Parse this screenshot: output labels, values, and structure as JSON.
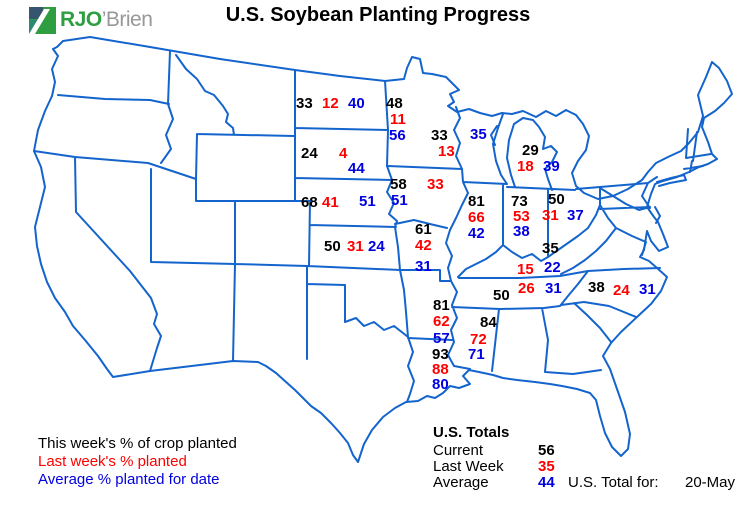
{
  "logo": {
    "text_primary": "RJO",
    "text_secondary": "’Brien"
  },
  "title": "U.S. Soybean Planting Progress",
  "legend": {
    "current_label": "This week's % of crop planted",
    "last_week_label": "Last week's % planted",
    "average_label": "Average % planted for date"
  },
  "totals": {
    "heading": "U.S. Totals",
    "rows": [
      {
        "label": "Current",
        "value": "56",
        "series": "current"
      },
      {
        "label": "Last Week",
        "value": "35",
        "series": "last_week"
      },
      {
        "label": "Average",
        "value": "44",
        "series": "average"
      }
    ],
    "total_for_label": "U.S. Total for:",
    "date": "20-May"
  },
  "colors": {
    "current": "#000000",
    "last_week": "#ff0000",
    "average": "#0000e0",
    "map_line": "#1464cd",
    "logo_green": "#2f9e41",
    "logo_gray": "#98989a"
  },
  "map_values": [
    {
      "state": "North Dakota",
      "entries": [
        [
          "current",
          "33",
          296,
          96
        ],
        [
          "last_week",
          "12",
          322,
          96
        ],
        [
          "average",
          "40",
          348,
          96
        ]
      ]
    },
    {
      "state": "Minnesota",
      "entries": [
        [
          "current",
          "48",
          386,
          96
        ],
        [
          "last_week",
          "11",
          390,
          112
        ],
        [
          "average",
          "56",
          389,
          128
        ]
      ]
    },
    {
      "state": "Wisconsin",
      "entries": [
        [
          "current",
          "33",
          431,
          128
        ],
        [
          "average",
          "35",
          470,
          127
        ],
        [
          "last_week",
          "13",
          438,
          144
        ]
      ]
    },
    {
      "state": "South Dakota",
      "entries": [
        [
          "current",
          "24",
          301,
          146
        ],
        [
          "last_week",
          "4",
          339,
          146
        ],
        [
          "average",
          "44",
          348,
          161
        ]
      ]
    },
    {
      "state": "Michigan",
      "entries": [
        [
          "current",
          "29",
          522,
          143
        ],
        [
          "last_week",
          "18",
          517,
          159
        ],
        [
          "average",
          "39",
          543,
          159
        ]
      ]
    },
    {
      "state": "Iowa",
      "entries": [
        [
          "current",
          "58",
          390,
          177
        ],
        [
          "last_week",
          "33",
          427,
          177
        ],
        [
          "average",
          "51",
          391,
          193
        ]
      ]
    },
    {
      "state": "Nebraska",
      "entries": [
        [
          "current",
          "68",
          301,
          195
        ],
        [
          "last_week",
          "41",
          322,
          195
        ],
        [
          "average",
          "51",
          359,
          194
        ]
      ]
    },
    {
      "state": "Ohio",
      "entries": [
        [
          "current",
          "50",
          548,
          192
        ],
        [
          "last_week",
          "31",
          542,
          208
        ],
        [
          "average",
          "37",
          567,
          208
        ]
      ]
    },
    {
      "state": "Illinois",
      "entries": [
        [
          "current",
          "81",
          468,
          194
        ],
        [
          "last_week",
          "66",
          468,
          210
        ],
        [
          "average",
          "42",
          468,
          226
        ]
      ]
    },
    {
      "state": "Indiana",
      "entries": [
        [
          "current",
          "73",
          511,
          194
        ],
        [
          "last_week",
          "53",
          513,
          209
        ],
        [
          "average",
          "38",
          513,
          224
        ]
      ]
    },
    {
      "state": "Kansas",
      "entries": [
        [
          "current",
          "50",
          324,
          239
        ],
        [
          "last_week",
          "31",
          347,
          239
        ],
        [
          "average",
          "24",
          368,
          239
        ]
      ]
    },
    {
      "state": "Missouri",
      "entries": [
        [
          "current",
          "61",
          415,
          222
        ],
        [
          "last_week",
          "42",
          415,
          238
        ],
        [
          "average",
          "31",
          415,
          259
        ]
      ]
    },
    {
      "state": "Kentucky",
      "entries": [
        [
          "current",
          "35",
          542,
          241
        ],
        [
          "last_week",
          "15",
          517,
          262
        ],
        [
          "average",
          "22",
          544,
          260
        ]
      ]
    },
    {
      "state": "Tennessee",
      "entries": [
        [
          "current",
          "50",
          493,
          288
        ],
        [
          "last_week",
          "26",
          518,
          281
        ],
        [
          "average",
          "31",
          545,
          281
        ]
      ]
    },
    {
      "state": "North Carolina",
      "entries": [
        [
          "current",
          "38",
          588,
          280
        ],
        [
          "last_week",
          "24",
          613,
          283
        ],
        [
          "average",
          "31",
          639,
          282
        ]
      ]
    },
    {
      "state": "Arkansas",
      "entries": [
        [
          "current",
          "81",
          433,
          298
        ],
        [
          "last_week",
          "62",
          433,
          314
        ],
        [
          "average",
          "57",
          433,
          331
        ]
      ]
    },
    {
      "state": "Mississippi",
      "entries": [
        [
          "current",
          "84",
          480,
          315
        ],
        [
          "last_week",
          "72",
          470,
          332
        ],
        [
          "average",
          "71",
          468,
          347
        ]
      ]
    },
    {
      "state": "Louisiana",
      "entries": [
        [
          "current",
          "93",
          432,
          347
        ],
        [
          "last_week",
          "88",
          432,
          362
        ],
        [
          "average",
          "80",
          432,
          377
        ]
      ]
    }
  ]
}
